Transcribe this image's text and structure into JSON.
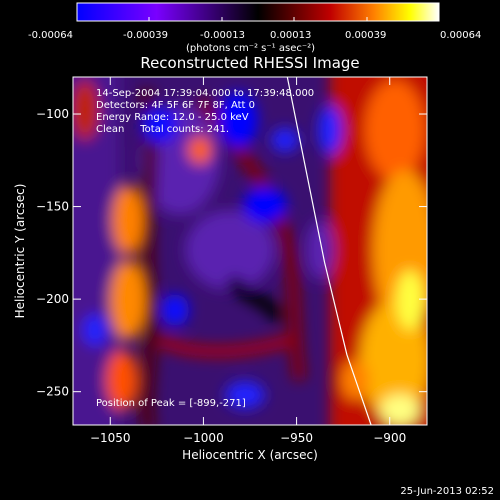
{
  "colorbar": {
    "ticks": [
      "-0.00064",
      "-0.00039",
      "-0.00013",
      "0.00013",
      "0.00039",
      "0.00064"
    ],
    "units": "(photons cm⁻² s⁻¹ asec⁻²)"
  },
  "chart_data": {
    "type": "heatmap",
    "title": "Reconstructed RHESSI Image",
    "xlabel": "Heliocentric X (arcsec)",
    "ylabel": "Heliocentric Y (arcsec)",
    "xlim": [
      -1070,
      -880
    ],
    "ylim": [
      -268,
      -80
    ],
    "xticks": [
      -1050,
      -1000,
      -950,
      -900
    ],
    "yticks": [
      -100,
      -150,
      -200,
      -250
    ],
    "clim": [
      -0.00064,
      0.00064
    ],
    "colormap": [
      "#0000ff",
      "#8000ff",
      "#000000",
      "#c00000",
      "#ff8000",
      "#ffff00",
      "#ffffff"
    ],
    "peak": [
      -899,
      -271
    ],
    "annotations": [
      "14-Sep-2004 17:39:04.000 to 17:39:48.000",
      "Detectors: 4F 5F 6F 7F 8F, Att 0",
      "Energy Range: 12.0 - 25.0 keV",
      "Clean     Total counts: 241.",
      "Position of Peak = [-899,-271]"
    ],
    "limb_curve": [
      [
        -955,
        -80
      ],
      [
        -945,
        -130
      ],
      [
        -935,
        -180
      ],
      [
        -923,
        -230
      ],
      [
        -910,
        -268
      ]
    ]
  },
  "footer": {
    "date": "25-Jun-2013 02:52"
  }
}
